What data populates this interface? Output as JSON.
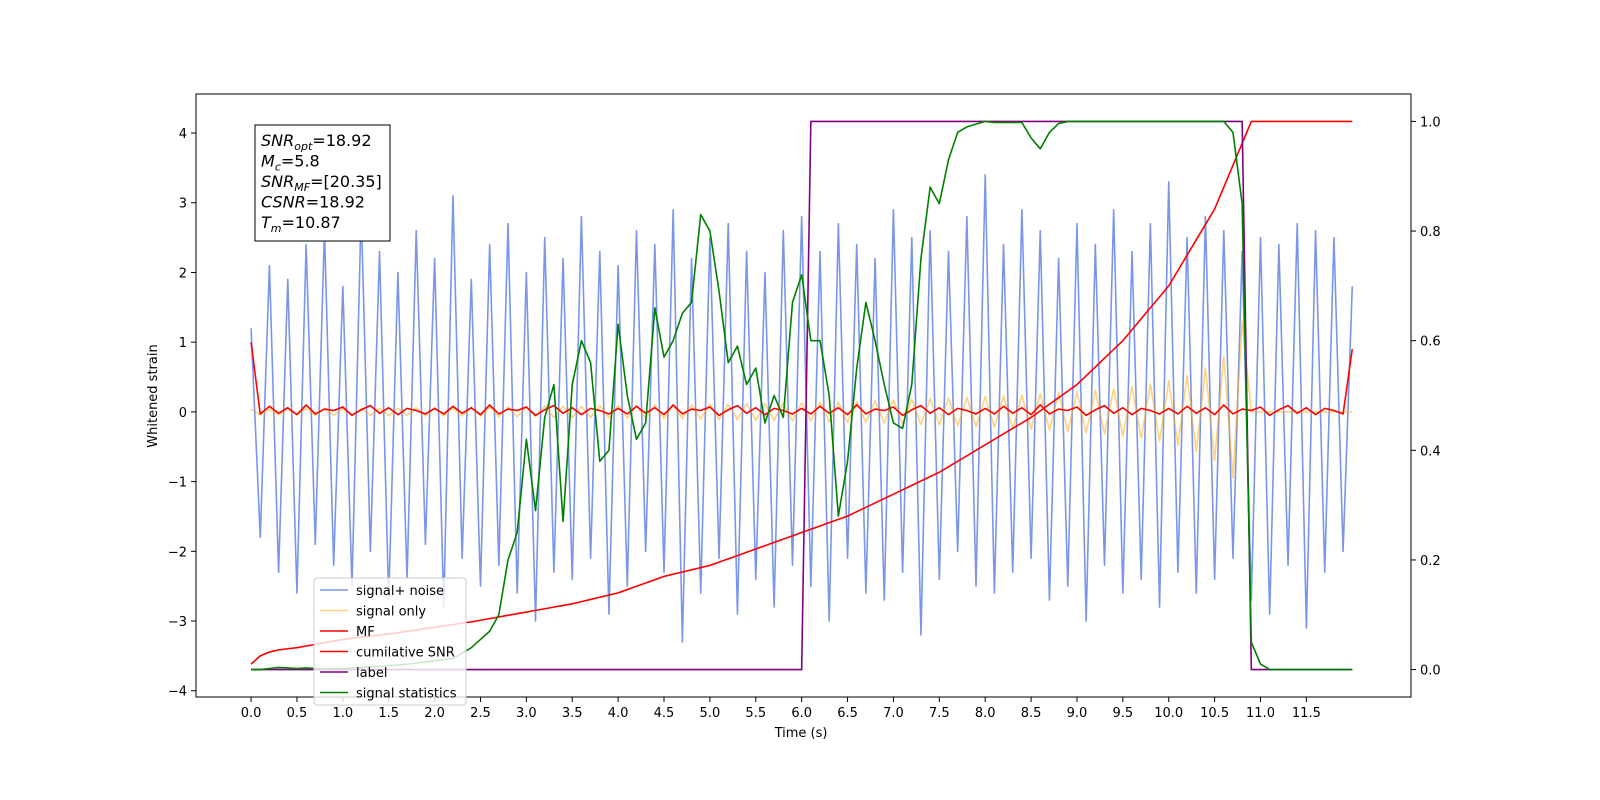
{
  "chart_data": {
    "type": "line",
    "xlabel": "Time (s)",
    "ylabel": "Whitened strain",
    "x": [
      0,
      0.1,
      0.2,
      0.3,
      0.4,
      0.5,
      0.6,
      0.7,
      0.8,
      0.9,
      1,
      1.1,
      1.2,
      1.3,
      1.4,
      1.5,
      1.6,
      1.7,
      1.8,
      1.9,
      2,
      2.1,
      2.2,
      2.3,
      2.4,
      2.5,
      2.6,
      2.7,
      2.8,
      2.9,
      3,
      3.1,
      3.2,
      3.3,
      3.4,
      3.5,
      3.6,
      3.7,
      3.8,
      3.9,
      4,
      4.1,
      4.2,
      4.3,
      4.4,
      4.5,
      4.6,
      4.7,
      4.8,
      4.9,
      5,
      5.1,
      5.2,
      5.3,
      5.4,
      5.5,
      5.6,
      5.7,
      5.8,
      5.9,
      6,
      6.1,
      6.2,
      6.3,
      6.4,
      6.5,
      6.6,
      6.7,
      6.8,
      6.9,
      7,
      7.1,
      7.2,
      7.3,
      7.4,
      7.5,
      7.6,
      7.7,
      7.8,
      7.9,
      8,
      8.1,
      8.2,
      8.3,
      8.4,
      8.5,
      8.6,
      8.7,
      8.8,
      8.9,
      9,
      9.1,
      9.2,
      9.3,
      9.4,
      9.5,
      9.6,
      9.7,
      9.8,
      9.9,
      10,
      10.1,
      10.2,
      10.3,
      10.4,
      10.5,
      10.6,
      10.7,
      10.8,
      10.9,
      11,
      11.1,
      11.2,
      11.3,
      11.4,
      11.5,
      11.6,
      11.7,
      11.8,
      11.9,
      12
    ],
    "xlim": [
      -0.6,
      12.64
    ],
    "ylim": [
      -4.09,
      4.56
    ],
    "y2lim": [
      -0.05,
      1.05
    ],
    "xticks": [
      {
        "value": 0,
        "label": "0.0"
      },
      {
        "value": 0.5,
        "label": "0.5"
      },
      {
        "value": 1,
        "label": "1.0"
      },
      {
        "value": 1.5,
        "label": "1.5"
      },
      {
        "value": 2,
        "label": "2.0"
      },
      {
        "value": 2.5,
        "label": "2.5"
      },
      {
        "value": 3,
        "label": "3.0"
      },
      {
        "value": 3.5,
        "label": "3.5"
      },
      {
        "value": 4,
        "label": "4.0"
      },
      {
        "value": 4.5,
        "label": "4.5"
      },
      {
        "value": 5,
        "label": "5.0"
      },
      {
        "value": 5.5,
        "label": "5.5"
      },
      {
        "value": 6,
        "label": "6.0"
      },
      {
        "value": 6.5,
        "label": "6.5"
      },
      {
        "value": 7,
        "label": "7.0"
      },
      {
        "value": 7.5,
        "label": "7.5"
      },
      {
        "value": 8,
        "label": "8.0"
      },
      {
        "value": 8.5,
        "label": "8.5"
      },
      {
        "value": 9,
        "label": "9.0"
      },
      {
        "value": 9.5,
        "label": "9.5"
      },
      {
        "value": 10,
        "label": "10.0"
      },
      {
        "value": 10.5,
        "label": "10.5"
      },
      {
        "value": 11,
        "label": "11.0"
      },
      {
        "value": 11.5,
        "label": "11.5"
      }
    ],
    "yticks": [
      {
        "value": -4,
        "label": "−4"
      },
      {
        "value": -3,
        "label": "−3"
      },
      {
        "value": -2,
        "label": "−2"
      },
      {
        "value": -1,
        "label": "−1"
      },
      0,
      1,
      2,
      3,
      4
    ],
    "y2ticks": [
      {
        "value": 0,
        "label": "0.0"
      },
      {
        "value": 0.2,
        "label": "0.2"
      },
      {
        "value": 0.4,
        "label": "0.4"
      },
      {
        "value": 0.6,
        "label": "0.6"
      },
      {
        "value": 0.8,
        "label": "0.8"
      },
      {
        "value": 1,
        "label": "1.0"
      }
    ],
    "legend": "lower left",
    "annotation": [
      {
        "symbol": "SNR",
        "subscript": "opt",
        "text": "=18.92"
      },
      {
        "symbol": "M",
        "subscript": "c",
        "text": "=5.8"
      },
      {
        "symbol": "SNR",
        "subscript": "MF",
        "text": "=[20.35]"
      },
      {
        "symbol": "CSNR",
        "text": "=18.92"
      },
      {
        "symbol": "T",
        "subscript": "m",
        "text": "=10.87"
      }
    ],
    "series": [
      {
        "name": "signal+ noise",
        "color": "#4169e1",
        "alpha": 0.7,
        "values": [
          1.2,
          -1.8,
          2.1,
          -2.3,
          1.9,
          -2.6,
          2.4,
          -1.9,
          2.6,
          -2.2,
          1.8,
          -2.5,
          2.9,
          -2.0,
          2.3,
          -2.7,
          2.0,
          -2.4,
          2.6,
          -1.9,
          2.2,
          -2.8,
          3.1,
          -2.1,
          1.9,
          -2.5,
          2.4,
          -2.2,
          2.7,
          -2.6,
          2.0,
          -3.0,
          2.5,
          -2.3,
          2.2,
          -2.4,
          2.8,
          -2.1,
          2.3,
          -2.9,
          2.1,
          -2.5,
          2.6,
          -2.0,
          2.4,
          -2.3,
          2.9,
          -3.3,
          2.2,
          -2.6,
          2.5,
          -2.1,
          2.7,
          -2.9,
          2.3,
          -2.4,
          2.0,
          -2.8,
          2.6,
          -2.2,
          2.8,
          -2.5,
          2.3,
          -3.0,
          2.7,
          -2.1,
          2.4,
          -2.6,
          2.2,
          -2.7,
          2.9,
          -2.3,
          2.5,
          -3.2,
          2.6,
          -2.4,
          2.3,
          -2.0,
          2.8,
          -2.5,
          3.4,
          -2.6,
          2.4,
          -2.3,
          2.9,
          -2.1,
          2.6,
          -2.7,
          2.2,
          -2.5,
          2.7,
          -3.0,
          2.4,
          -2.2,
          2.9,
          -2.6,
          2.3,
          -2.4,
          2.7,
          -2.8,
          3.3,
          -2.3,
          2.5,
          -2.6,
          2.8,
          -2.4,
          2.6,
          -2.1,
          2.3,
          -2.7,
          2.5,
          -2.9,
          2.4,
          -2.2,
          2.7,
          -3.1,
          2.6,
          -2.3,
          2.5,
          -2.0,
          1.8
        ]
      },
      {
        "name": "signal only",
        "color": "#ffa500",
        "alpha": 0.5,
        "values": [
          0.04,
          -0.04,
          0.04,
          -0.04,
          0.04,
          -0.04,
          0.05,
          -0.05,
          0.05,
          -0.05,
          0.05,
          -0.05,
          0.05,
          -0.05,
          0.05,
          -0.05,
          0.05,
          -0.05,
          0.06,
          -0.06,
          0.06,
          -0.06,
          0.06,
          -0.06,
          0.06,
          -0.06,
          0.07,
          -0.07,
          0.07,
          -0.07,
          0.07,
          -0.07,
          0.08,
          -0.08,
          0.08,
          -0.08,
          0.08,
          -0.08,
          0.09,
          -0.09,
          0.09,
          -0.09,
          0.09,
          -0.09,
          0.1,
          -0.1,
          0.1,
          -0.1,
          0.1,
          -0.1,
          0.11,
          -0.11,
          0.11,
          -0.11,
          0.12,
          -0.12,
          0.12,
          -0.12,
          0.13,
          -0.13,
          0.13,
          -0.13,
          0.14,
          -0.14,
          0.14,
          -0.15,
          0.15,
          -0.15,
          0.16,
          -0.16,
          0.17,
          -0.17,
          0.18,
          -0.18,
          0.19,
          -0.19,
          0.2,
          -0.2,
          0.21,
          -0.21,
          0.22,
          -0.22,
          0.23,
          -0.24,
          0.24,
          -0.25,
          0.26,
          -0.26,
          0.27,
          -0.28,
          0.29,
          -0.3,
          0.31,
          -0.32,
          0.33,
          -0.35,
          0.36,
          -0.38,
          0.4,
          -0.42,
          0.45,
          -0.48,
          0.52,
          -0.57,
          0.63,
          -0.7,
          0.8,
          -0.95,
          1.3,
          0,
          0,
          0,
          0,
          0,
          0,
          0,
          0,
          0,
          0,
          0,
          0
        ]
      },
      {
        "name": "MF",
        "color": "#ff0000",
        "alpha": 1,
        "values": [
          1.0,
          -0.03,
          0.08,
          -0.02,
          0.06,
          -0.04,
          0.1,
          -0.03,
          0.04,
          0.02,
          0.07,
          -0.05,
          0.03,
          0.09,
          -0.02,
          0.06,
          -0.04,
          0.05,
          0.02,
          -0.03,
          0.05,
          -0.03,
          0.08,
          -0.02,
          0.06,
          -0.04,
          0.1,
          -0.03,
          0.04,
          0.02,
          0.07,
          -0.05,
          0.03,
          0.09,
          -0.02,
          0.06,
          -0.04,
          0.05,
          0.02,
          -0.03,
          0.05,
          -0.03,
          0.08,
          -0.02,
          0.06,
          -0.04,
          0.1,
          -0.03,
          0.04,
          0.02,
          0.07,
          -0.05,
          0.03,
          0.09,
          -0.02,
          0.06,
          -0.04,
          0.05,
          0.02,
          -0.03,
          0.05,
          -0.03,
          0.08,
          -0.02,
          0.06,
          -0.04,
          0.1,
          -0.03,
          0.04,
          0.02,
          0.07,
          -0.05,
          0.03,
          0.09,
          -0.02,
          0.06,
          -0.04,
          0.05,
          0.02,
          -0.03,
          0.05,
          -0.03,
          0.08,
          -0.02,
          0.06,
          -0.04,
          0.1,
          -0.03,
          0.04,
          0.02,
          0.07,
          -0.05,
          0.03,
          0.09,
          -0.02,
          0.06,
          -0.04,
          0.05,
          0.02,
          -0.03,
          0.05,
          -0.03,
          0.08,
          -0.02,
          0.06,
          -0.04,
          0.1,
          -0.03,
          0.04,
          0.02,
          0.07,
          -0.05,
          0.03,
          0.09,
          -0.02,
          0.06,
          -0.04,
          0.05,
          0.02,
          -0.03,
          0.9
        ]
      },
      {
        "name": "cumilative SNR",
        "color": "#ff0000",
        "alpha": 1,
        "axis": "y2",
        "values": [
          0.01,
          0.025,
          0.032,
          0.036,
          0.038,
          0.04,
          0.043,
          0.046,
          0.049,
          0.052,
          0.055,
          0.057,
          0.059,
          0.061,
          0.063,
          0.065,
          0.067,
          0.07,
          0.072,
          0.075,
          0.077,
          0.08,
          0.082,
          0.085,
          0.087,
          0.09,
          0.093,
          0.096,
          0.099,
          0.102,
          0.105,
          0.108,
          0.111,
          0.114,
          0.117,
          0.12,
          0.124,
          0.128,
          0.132,
          0.136,
          0.14,
          0.146,
          0.152,
          0.158,
          0.164,
          0.17,
          0.174,
          0.178,
          0.182,
          0.186,
          0.19,
          0.196,
          0.202,
          0.208,
          0.214,
          0.22,
          0.226,
          0.232,
          0.238,
          0.244,
          0.25,
          0.256,
          0.262,
          0.268,
          0.274,
          0.28,
          0.288,
          0.296,
          0.304,
          0.312,
          0.32,
          0.328,
          0.336,
          0.344,
          0.352,
          0.36,
          0.37,
          0.38,
          0.39,
          0.4,
          0.41,
          0.42,
          0.43,
          0.44,
          0.45,
          0.46,
          0.472,
          0.484,
          0.496,
          0.508,
          0.52,
          0.536,
          0.552,
          0.568,
          0.584,
          0.6,
          0.62,
          0.64,
          0.66,
          0.68,
          0.7,
          0.728,
          0.756,
          0.784,
          0.812,
          0.84,
          0.88,
          0.92,
          0.96,
          1.0,
          1.0,
          1.0,
          1.0,
          1.0,
          1.0,
          1.0,
          1.0,
          1.0,
          1.0,
          1.0,
          1.0
        ]
      },
      {
        "name": "label",
        "color": "#800080",
        "alpha": 1,
        "axis": "y2",
        "values": [
          0,
          0,
          0,
          0,
          0,
          0,
          0,
          0,
          0,
          0,
          0,
          0,
          0,
          0,
          0,
          0,
          0,
          0,
          0,
          0,
          0,
          0,
          0,
          0,
          0,
          0,
          0,
          0,
          0,
          0,
          0,
          0,
          0,
          0,
          0,
          0,
          0,
          0,
          0,
          0,
          0,
          0,
          0,
          0,
          0,
          0,
          0,
          0,
          0,
          0,
          0,
          0,
          0,
          0,
          0,
          0,
          0,
          0,
          0,
          0,
          0,
          1,
          1,
          1,
          1,
          1,
          1,
          1,
          1,
          1,
          1,
          1,
          1,
          1,
          1,
          1,
          1,
          1,
          1,
          1,
          1,
          1,
          1,
          1,
          1,
          1,
          1,
          1,
          1,
          1,
          1,
          1,
          1,
          1,
          1,
          1,
          1,
          1,
          1,
          1,
          1,
          1,
          1,
          1,
          1,
          1,
          1,
          1,
          1,
          0,
          0,
          0,
          0,
          0,
          0,
          0,
          0,
          0,
          0,
          0,
          0
        ]
      },
      {
        "name": "signal statistics",
        "color": "#008000",
        "alpha": 1,
        "axis": "y2",
        "values": [
          0.0,
          0.0,
          0.002,
          0.004,
          0.003,
          0.002,
          0.003,
          0.002,
          0.001,
          0.002,
          0.002,
          0.003,
          0.004,
          0.005,
          0.006,
          0.007,
          0.008,
          0.01,
          0.012,
          0.014,
          0.016,
          0.018,
          0.02,
          0.03,
          0.04,
          0.055,
          0.07,
          0.1,
          0.2,
          0.25,
          0.42,
          0.29,
          0.46,
          0.52,
          0.27,
          0.52,
          0.6,
          0.56,
          0.38,
          0.4,
          0.63,
          0.5,
          0.42,
          0.45,
          0.66,
          0.57,
          0.6,
          0.65,
          0.67,
          0.83,
          0.8,
          0.69,
          0.56,
          0.59,
          0.52,
          0.55,
          0.45,
          0.5,
          0.46,
          0.67,
          0.72,
          0.6,
          0.6,
          0.5,
          0.28,
          0.38,
          0.55,
          0.67,
          0.6,
          0.52,
          0.45,
          0.44,
          0.52,
          0.75,
          0.88,
          0.85,
          0.93,
          0.98,
          0.99,
          0.995,
          1.0,
          0.998,
          0.998,
          0.998,
          0.998,
          0.97,
          0.95,
          0.98,
          0.996,
          1.0,
          1.0,
          1.0,
          1.0,
          1.0,
          1.0,
          1.0,
          1.0,
          1.0,
          1.0,
          1.0,
          1.0,
          1.0,
          1.0,
          1.0,
          1.0,
          1.0,
          1.0,
          0.98,
          0.85,
          0.05,
          0.01,
          0,
          0,
          0,
          0,
          0,
          0,
          0,
          0,
          0,
          0
        ]
      }
    ]
  }
}
